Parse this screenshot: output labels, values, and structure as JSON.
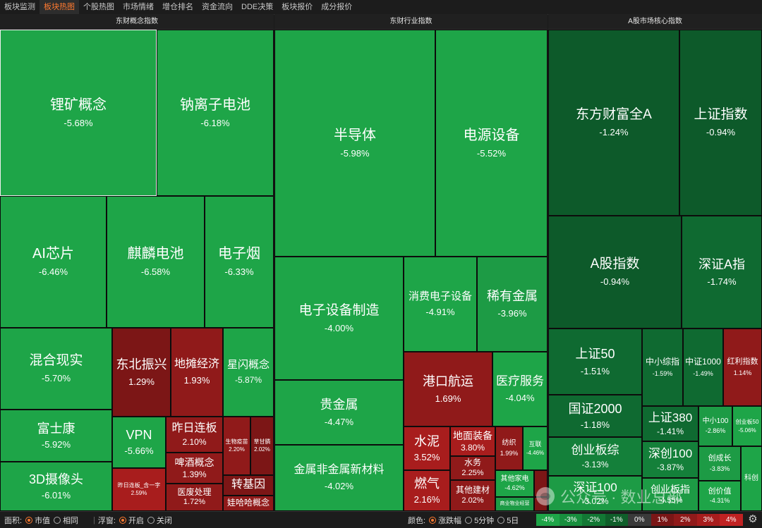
{
  "tabs": [
    "板块监测",
    "板块热图",
    "个股热图",
    "市场情绪",
    "增仓排名",
    "资金流向",
    "DDE决策",
    "板块报价",
    "成分报价"
  ],
  "active_tab": 1,
  "panels": [
    {
      "title": "东财概念指数",
      "tiles": [
        {
          "name": "锂矿概念",
          "value": "-5.68%",
          "selected": true
        },
        {
          "name": "钠离子电池",
          "value": "-6.18%"
        },
        {
          "name": "AI芯片",
          "value": "-6.46%"
        },
        {
          "name": "麒麟电池",
          "value": "-6.58%"
        },
        {
          "name": "电子烟",
          "value": "-6.33%"
        },
        {
          "name": "混合现实",
          "value": "-5.70%"
        },
        {
          "name": "东北振兴",
          "value": "1.29%"
        },
        {
          "name": "地摊经济",
          "value": "1.93%"
        },
        {
          "name": "星闪概念",
          "value": "-5.87%"
        },
        {
          "name": "富士康",
          "value": "-5.92%"
        },
        {
          "name": "VPN",
          "value": "-5.66%"
        },
        {
          "name": "昨日连板",
          "value": "2.10%"
        },
        {
          "name": "生物疫苗",
          "value": "2.20%"
        },
        {
          "name": "草甘膦",
          "value": "2.02%"
        },
        {
          "name": "啤酒概念",
          "value": "1.39%"
        },
        {
          "name": "3D摄像头",
          "value": "-6.01%"
        },
        {
          "name": "昨日连板_含一字",
          "value": "2.59%"
        },
        {
          "name": "医废处理",
          "value": "1.72%"
        },
        {
          "name": "转基因",
          "value": ""
        },
        {
          "name": "娃哈哈概念",
          "value": ""
        }
      ]
    },
    {
      "title": "东财行业指数",
      "tiles": [
        {
          "name": "半导体",
          "value": "-5.98%"
        },
        {
          "name": "电源设备",
          "value": "-5.52%"
        },
        {
          "name": "电子设备制造",
          "value": "-4.00%"
        },
        {
          "name": "消费电子设备",
          "value": "-4.91%"
        },
        {
          "name": "稀有金属",
          "value": "-3.96%"
        },
        {
          "name": "港口航运",
          "value": "1.69%"
        },
        {
          "name": "医疗服务",
          "value": "-4.04%"
        },
        {
          "name": "贵金属",
          "value": "-4.47%"
        },
        {
          "name": "水泥",
          "value": "3.52%"
        },
        {
          "name": "地面装备",
          "value": "3.80%"
        },
        {
          "name": "纺织",
          "value": "1.99%"
        },
        {
          "name": "互联",
          "value": "-4.46%"
        },
        {
          "name": "水务",
          "value": "2.25%"
        },
        {
          "name": "金属非金属新材料",
          "value": "-4.02%"
        },
        {
          "name": "燃气",
          "value": "2.16%"
        },
        {
          "name": "其他建材",
          "value": "2.02%"
        },
        {
          "name": "其他家电",
          "value": "-4.62%"
        },
        {
          "name": "商业物业经营",
          "value": ""
        }
      ]
    },
    {
      "title": "A股市场核心指数",
      "tiles": [
        {
          "name": "东方财富全A",
          "value": "-1.24%"
        },
        {
          "name": "上证指数",
          "value": "-0.94%"
        },
        {
          "name": "A股指数",
          "value": "-0.94%"
        },
        {
          "name": "深证A指",
          "value": "-1.74%"
        },
        {
          "name": "上证50",
          "value": "-1.51%"
        },
        {
          "name": "中小综指",
          "value": "-1.59%"
        },
        {
          "name": "中证1000",
          "value": "-1.49%"
        },
        {
          "name": "红利指数",
          "value": "1.14%"
        },
        {
          "name": "国证2000",
          "value": "-1.18%"
        },
        {
          "name": "上证380",
          "value": "-1.41%"
        },
        {
          "name": "中小100",
          "value": "-2.86%"
        },
        {
          "name": "创业板50",
          "value": "-5.06%"
        },
        {
          "name": "创业板综",
          "value": "-3.13%"
        },
        {
          "name": "深创100",
          "value": "-3.87%"
        },
        {
          "name": "创成长",
          "value": "-3.83%"
        },
        {
          "name": "深证100",
          "value": "-3.02%"
        },
        {
          "name": "创业板指",
          "value": "-4.55%"
        },
        {
          "name": "创价值",
          "value": "-4.31%"
        },
        {
          "name": "科创",
          "value": ""
        }
      ]
    }
  ],
  "bottom": {
    "area_label": "面积:",
    "area_options": [
      "市值",
      "相同"
    ],
    "area_selected": 0,
    "float_label": "浮窗:",
    "float_options": [
      "开启",
      "关闭"
    ],
    "float_selected": 0,
    "color_label": "颜色:",
    "color_options": [
      "涨跌幅",
      "5分钟",
      "5日"
    ],
    "color_selected": 0,
    "legend": [
      "-4%",
      "-3%",
      "-2%",
      "-1%",
      "0%",
      "1%",
      "2%",
      "3%",
      "4%"
    ],
    "legend_colors": [
      "#1ea548",
      "#188f3e",
      "#127834",
      "#0f5f2a",
      "#3a3a3a",
      "#7a1616",
      "#901a1a",
      "#a81d1d",
      "#c02222"
    ]
  },
  "watermark": "公众号 · 数业总部"
}
